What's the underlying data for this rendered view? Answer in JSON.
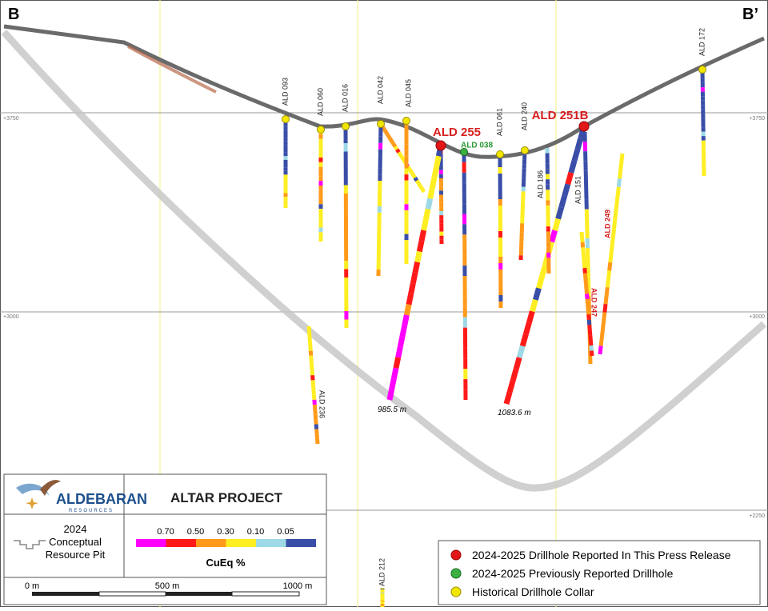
{
  "section": {
    "left_label": "B",
    "right_label": "B’",
    "elevations": [
      {
        "left": "+3750",
        "right": "+3750"
      },
      {
        "left": "+3000",
        "right": "+3000"
      },
      {
        "right": "+2250"
      }
    ]
  },
  "drillholes": [
    {
      "label": "ALD 093"
    },
    {
      "label": "ALD 060"
    },
    {
      "label": "ALD 016"
    },
    {
      "label": "ALD 042"
    },
    {
      "label": "ALD 045"
    },
    {
      "label": "ALD 255"
    },
    {
      "label": "ALD 038"
    },
    {
      "label": "ALD 061"
    },
    {
      "label": "ALD 240"
    },
    {
      "label": "ALD 251B"
    },
    {
      "label": "ALD 186"
    },
    {
      "label": "ALD 151"
    },
    {
      "label": "ALD 247"
    },
    {
      "label": "ALD 249"
    },
    {
      "label": "ALD 172"
    },
    {
      "label": "ALD 236"
    },
    {
      "label": "ALD 212"
    }
  ],
  "depth_labels": [
    "985.5 m",
    "1083.6 m"
  ],
  "legend": {
    "company": "ALDEBARAN",
    "company_sub": "RESOURCES",
    "project": "ALTAR PROJECT",
    "pit": [
      "2024",
      "Conceptual",
      "Resource Pit"
    ],
    "grade_thresholds": [
      "0.70",
      "0.50",
      "0.30",
      "0.10",
      "0.05"
    ],
    "grade_title": "CuEq %",
    "scale_labels": [
      "0 m",
      "500 m",
      "1000 m"
    ],
    "entries": [
      "2024-2025 Drillhole Reported In This Press Release",
      "2024-2025 Previously Reported Drillhole",
      "Historical Drillhole Collar"
    ]
  }
}
